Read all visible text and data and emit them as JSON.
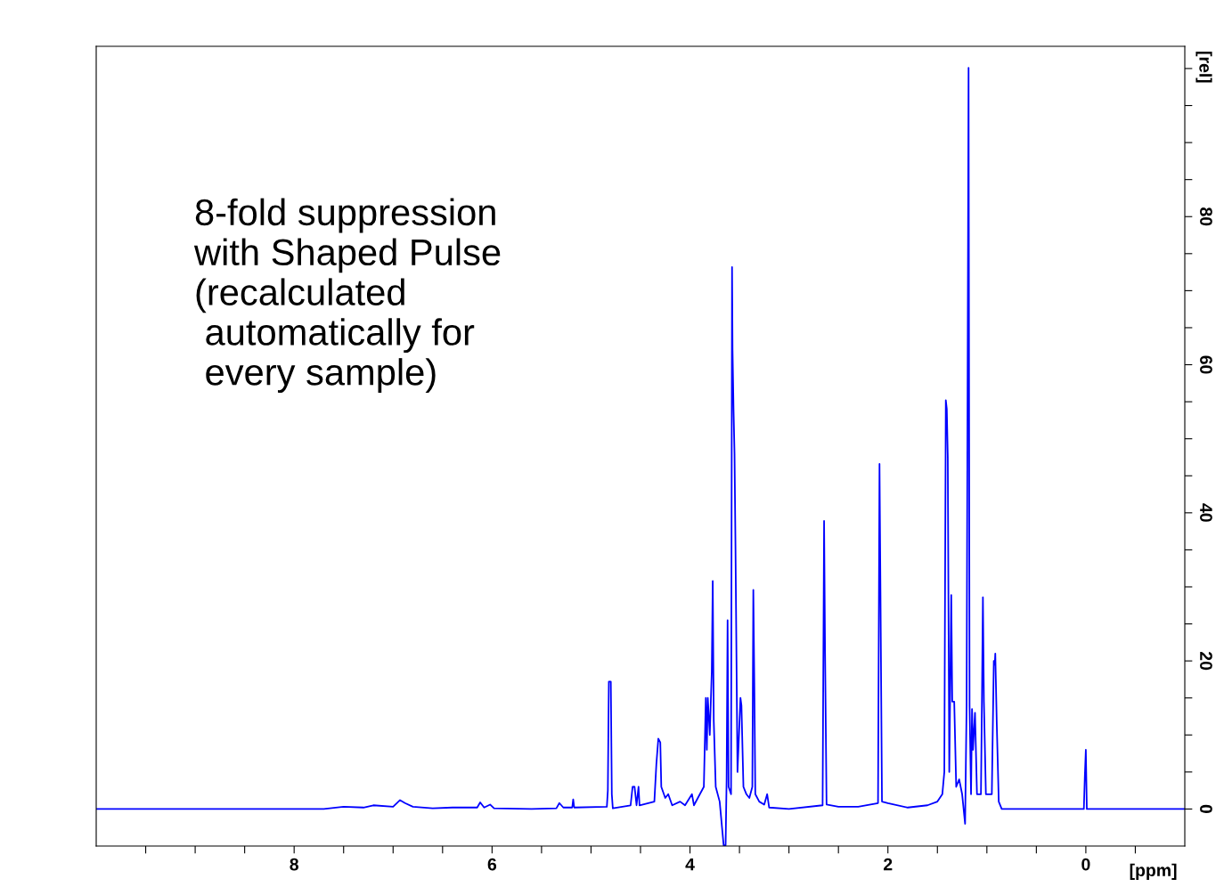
{
  "chart_data": {
    "type": "line",
    "xlabel": "[ppm]",
    "ylabel": "[rel]",
    "annotations": [
      "8-fold suppression\nwith Shaped Pulse\n(recalculated\n automatically for\n every sample)"
    ],
    "xlim": [
      10,
      -1
    ],
    "xticks": [
      {
        "value": 9.5,
        "label": null
      },
      {
        "value": 9,
        "label": null
      },
      {
        "value": 8.5,
        "label": null
      },
      8,
      {
        "value": 7.5,
        "label": null
      },
      {
        "value": 7,
        "label": null
      },
      {
        "value": 6.5,
        "label": null
      },
      6,
      {
        "value": 5.5,
        "label": null
      },
      {
        "value": 5,
        "label": null
      },
      {
        "value": 4.5,
        "label": null
      },
      4,
      {
        "value": 3.5,
        "label": null
      },
      {
        "value": 3,
        "label": null
      },
      {
        "value": 2.5,
        "label": null
      },
      2,
      {
        "value": 1.5,
        "label": null
      },
      {
        "value": 1,
        "label": null
      },
      {
        "value": 0.5,
        "label": null
      },
      0,
      {
        "value": -0.5,
        "label": null
      }
    ],
    "ylim": [
      -5,
      103
    ],
    "yticks": [
      0,
      {
        "value": 5,
        "label": null
      },
      {
        "value": 10,
        "label": null
      },
      {
        "value": 15,
        "label": null
      },
      20,
      {
        "value": 25,
        "label": null
      },
      {
        "value": 30,
        "label": null
      },
      {
        "value": 35,
        "label": null
      },
      40,
      {
        "value": 45,
        "label": null
      },
      {
        "value": 50,
        "label": null
      },
      {
        "value": 55,
        "label": null
      },
      60,
      {
        "value": 65,
        "label": null
      },
      {
        "value": 70,
        "label": null
      },
      {
        "value": 75,
        "label": null
      },
      80,
      {
        "value": 85,
        "label": null
      },
      {
        "value": 90,
        "label": null
      },
      {
        "value": 95,
        "label": null
      },
      {
        "value": 100,
        "label": null
      }
    ],
    "grid": false,
    "legend": false,
    "line_style": "solid",
    "marker": "none",
    "series": [
      {
        "color": "#0000ff",
        "x": [
          10.0,
          8.7,
          7.7,
          7.5,
          7.3,
          7.2,
          7.0,
          6.93,
          6.88,
          6.8,
          6.6,
          6.4,
          6.15,
          6.12,
          6.08,
          6.02,
          5.98,
          5.6,
          5.35,
          5.32,
          5.28,
          5.19,
          5.18,
          5.17,
          4.84,
          4.83,
          4.82,
          4.8,
          4.79,
          4.78,
          4.6,
          4.58,
          4.56,
          4.54,
          4.52,
          4.51,
          4.36,
          4.34,
          4.32,
          4.3,
          4.29,
          4.25,
          4.22,
          4.18,
          4.1,
          4.05,
          3.98,
          3.96,
          3.9,
          3.86,
          3.84,
          3.83,
          3.82,
          3.8,
          3.78,
          3.77,
          3.76,
          3.74,
          3.7,
          3.66,
          3.64,
          3.63,
          3.62,
          3.61,
          3.585,
          3.575,
          3.57,
          3.56,
          3.55,
          3.54,
          3.53,
          3.52,
          3.49,
          3.48,
          3.46,
          3.43,
          3.4,
          3.37,
          3.36,
          3.35,
          3.34,
          3.3,
          3.25,
          3.22,
          3.2,
          3.0,
          2.66,
          2.645,
          2.635,
          2.62,
          2.5,
          2.3,
          2.1,
          2.085,
          2.075,
          2.06,
          2.0,
          1.8,
          1.6,
          1.5,
          1.45,
          1.43,
          1.415,
          1.405,
          1.395,
          1.38,
          1.36,
          1.35,
          1.33,
          1.31,
          1.28,
          1.25,
          1.22,
          1.205,
          1.195,
          1.185,
          1.175,
          1.16,
          1.15,
          1.14,
          1.12,
          1.1,
          1.06,
          1.05,
          1.04,
          1.03,
          1.01,
          0.95,
          0.93,
          0.92,
          0.915,
          0.9,
          0.88,
          0.85,
          0.5,
          0.02,
          0.01,
          0.0,
          -0.01,
          -1.0
        ],
        "values": [
          0,
          0,
          0,
          0.3,
          0.2,
          0.5,
          0.3,
          1.2,
          0.8,
          0.3,
          0.1,
          0.2,
          0.2,
          0.9,
          0.2,
          0.6,
          0.1,
          0,
          0.1,
          0.8,
          0.2,
          0.2,
          1.3,
          0.2,
          0.3,
          2.5,
          17.2,
          17.2,
          2,
          0.1,
          0.5,
          3,
          3,
          0.5,
          3,
          0.5,
          1,
          6,
          9.5,
          9,
          3,
          1.5,
          2,
          0.5,
          1,
          0.5,
          2,
          0.5,
          2,
          3,
          15,
          8,
          15,
          10,
          18.5,
          30.8,
          12,
          3,
          1,
          -4.9,
          -4.9,
          4,
          25.5,
          3,
          2,
          73.2,
          62,
          54,
          48,
          35,
          20,
          5,
          15,
          14,
          3,
          2,
          1.5,
          3,
          29.6,
          17,
          2,
          1,
          0.6,
          2,
          0.2,
          0,
          0.5,
          38.9,
          21,
          0.6,
          0.3,
          0.3,
          0.8,
          46.6,
          29,
          1,
          0.8,
          0.2,
          0.5,
          1,
          2,
          5,
          55.2,
          54,
          47.5,
          5,
          28.9,
          14.5,
          14.5,
          3,
          4,
          2,
          -2,
          14,
          56.5,
          100.1,
          14,
          2,
          13.5,
          8,
          13,
          2,
          2,
          14.5,
          28.6,
          14.5,
          2,
          2,
          20,
          19.5,
          21,
          11.5,
          1,
          0,
          0,
          0,
          4.5,
          8,
          0,
          0
        ]
      }
    ]
  }
}
